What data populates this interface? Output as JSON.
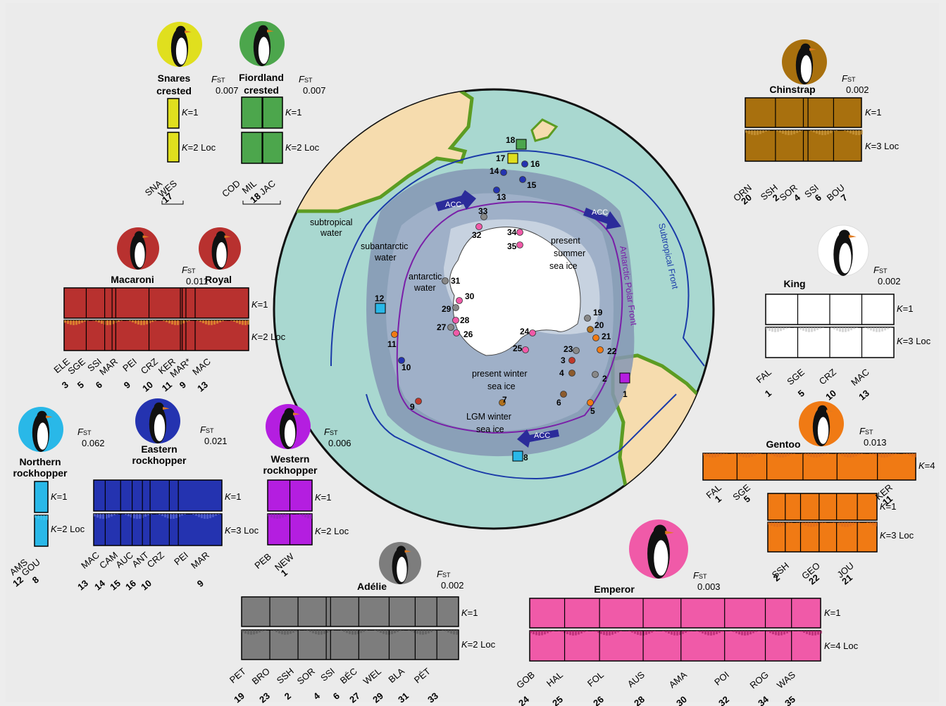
{
  "map": {
    "region_labels": {
      "subtropical_water": [
        "subtropical",
        "water"
      ],
      "subantarctic_water": [
        "subantarctic",
        "water"
      ],
      "antarctic_water": [
        "antarctic",
        "water"
      ],
      "summer_ice": [
        "present",
        "summer",
        "sea ice"
      ],
      "winter_ice": [
        "present winter",
        "sea ice"
      ],
      "lgm_ice": [
        "LGM winter",
        "sea ice"
      ],
      "subtropical_front": "Subtropical Front",
      "polar_front": "Antarctic Polar Front",
      "acc": "ACC"
    },
    "site_numbers": [
      "1",
      "2",
      "3",
      "4",
      "5",
      "6",
      "7",
      "8",
      "9",
      "10",
      "11",
      "12",
      "13",
      "14",
      "15",
      "16",
      "17",
      "18",
      "19",
      "20",
      "21",
      "22",
      "23",
      "24",
      "25",
      "26",
      "27",
      "28",
      "29",
      "30",
      "31",
      "32",
      "33",
      "34",
      "35"
    ],
    "colors": {
      "ocean": "#a9d8d0",
      "land": "#f6dcae",
      "coast": "#7fb73b",
      "sea_ice_lgm": "#8597b4",
      "sea_ice_winter": "#9fb0c8",
      "sea_ice_summer": "#c7d2e0",
      "front_subtropical": "#1a3aa8",
      "front_polar": "#7a1fa8",
      "acc": "#2b2b9a"
    }
  },
  "panels": [
    {
      "name": "Snares crested",
      "title": [
        "Snares",
        "crested"
      ],
      "fst": "0.007",
      "color": "#e0df1e",
      "k_rows": [
        "K=1",
        "K=2 Loc"
      ],
      "pops": [
        "SNA",
        "WES"
      ],
      "pop_numbers": [
        "17"
      ]
    },
    {
      "name": "Fiordland crested",
      "title": [
        "Fiordland",
        "crested"
      ],
      "fst": "0.007",
      "color": "#4ca64c",
      "k_rows": [
        "K=1",
        "K=2 Loc"
      ],
      "pops": [
        "COD",
        "MIL",
        "JAC"
      ],
      "pop_numbers": [
        "18"
      ]
    },
    {
      "name": "Chinstrap",
      "title": [
        "Chinstrap"
      ],
      "fst": "0.002",
      "color": "#a8700e",
      "k_rows": [
        "K=1",
        "K=3 Loc"
      ],
      "pops": [
        "ORN",
        "SSH",
        "SOR",
        "SSI",
        "BOU"
      ],
      "pop_numbers": [
        "20",
        "2",
        "4",
        "6",
        "7"
      ]
    },
    {
      "name": "Macaroni / Royal",
      "title": [
        "Macaroni",
        "Royal"
      ],
      "fst": "0.011",
      "color": "#b8312f",
      "k_rows": [
        "K=1",
        "K=2 Loc"
      ],
      "pops": [
        "ELE",
        "SGE",
        "SSI",
        "MAR",
        "PEI",
        "CRZ",
        "KER",
        "MAR*",
        "MAC"
      ],
      "pop_numbers": [
        "3",
        "5",
        "6",
        "9",
        "10",
        "11",
        "9",
        "13"
      ]
    },
    {
      "name": "King",
      "title": [
        "King"
      ],
      "fst": "0.002",
      "color": "#ffffff",
      "k_rows": [
        "K=1",
        "K=3 Loc"
      ],
      "pops": [
        "FAL",
        "SGE",
        "CRZ",
        "MAC"
      ],
      "pop_numbers": [
        "1",
        "5",
        "10",
        "13"
      ]
    },
    {
      "name": "Gentoo",
      "title": [
        "Gentoo"
      ],
      "fst": "0.013",
      "color": "#f07a14",
      "k_rows": [
        "K=4",
        "K=1",
        "K=3 Loc"
      ],
      "pops": [
        "FAL",
        "SGE",
        "KER",
        "SSH",
        "GEO",
        "JOU"
      ],
      "pop_numbers": [
        "1",
        "5",
        "11",
        "2",
        "22",
        "21"
      ]
    },
    {
      "name": "Northern rockhopper",
      "title": [
        "Northern",
        "rockhopper"
      ],
      "fst": "0.062",
      "color": "#29b8e8",
      "k_rows": [
        "K=1",
        "K=2 Loc"
      ],
      "pops": [
        "AMS",
        "GOU"
      ],
      "pop_numbers": [
        "12",
        "8"
      ]
    },
    {
      "name": "Eastern rockhopper",
      "title": [
        "Eastern",
        "rockhopper"
      ],
      "fst": "0.021",
      "color": "#2433b0",
      "k_rows": [
        "K=1",
        "K=3 Loc"
      ],
      "pops": [
        "MAC",
        "CAM",
        "AUC",
        "ANT",
        "CRZ",
        "PEI",
        "MAR"
      ],
      "pop_numbers": [
        "13",
        "14",
        "15",
        "16",
        "10",
        "9"
      ]
    },
    {
      "name": "Western rockhopper",
      "title": [
        "Western",
        "rockhopper"
      ],
      "fst": "0.006",
      "color": "#b41ee0",
      "k_rows": [
        "K=1",
        "K=2 Loc"
      ],
      "pops": [
        "PEB",
        "NEW"
      ],
      "pop_numbers": [
        "1"
      ]
    },
    {
      "name": "Adélie",
      "title": [
        "Adélie"
      ],
      "fst": "0.002",
      "color": "#7d7d7d",
      "k_rows": [
        "K=1",
        "K=2 Loc"
      ],
      "pops": [
        "PET",
        "BRO",
        "SSH",
        "SOR",
        "SSI",
        "BÉC",
        "WEL",
        "BLA",
        "PÉT"
      ],
      "pop_numbers": [
        "19",
        "23",
        "2",
        "4",
        "6",
        "27",
        "29",
        "31",
        "33"
      ]
    },
    {
      "name": "Emperor",
      "title": [
        "Emperor"
      ],
      "fst": "0.003",
      "color": "#f05aa8",
      "k_rows": [
        "K=1",
        "K=4 Loc"
      ],
      "pops": [
        "GOB",
        "HAL",
        "FOL",
        "AUS",
        "AMA",
        "POI",
        "ROG",
        "WAS"
      ],
      "pop_numbers": [
        "24",
        "25",
        "26",
        "28",
        "30",
        "32",
        "34",
        "35"
      ]
    }
  ],
  "fst_label": "FST"
}
